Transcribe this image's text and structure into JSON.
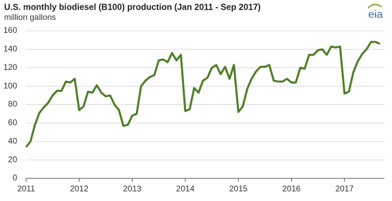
{
  "chart_data": {
    "type": "line",
    "title": "U.S. monthly biodiesel (B100) production (Jan 2011 - Sep 2017)",
    "subtitle": "million gallons",
    "logo": "eia",
    "categories": [
      "2011",
      null,
      null,
      null,
      null,
      null,
      null,
      null,
      null,
      null,
      null,
      null,
      "2012",
      null,
      null,
      null,
      null,
      null,
      null,
      null,
      null,
      null,
      null,
      null,
      "2013",
      null,
      null,
      null,
      null,
      null,
      null,
      null,
      null,
      null,
      null,
      null,
      "2014",
      null,
      null,
      null,
      null,
      null,
      null,
      null,
      null,
      null,
      null,
      null,
      "2015",
      null,
      null,
      null,
      null,
      null,
      null,
      null,
      null,
      null,
      null,
      null,
      "2016",
      null,
      null,
      null,
      null,
      null,
      null,
      null,
      null,
      null,
      null,
      null,
      "2017",
      null,
      null,
      null,
      null,
      null,
      null,
      null,
      null
    ],
    "series": [
      {
        "name": "biodiesel production",
        "color": "#4e7f26",
        "values": [
          34,
          40,
          58,
          71,
          77,
          82,
          90,
          95,
          95,
          105,
          104,
          108,
          74,
          78,
          94,
          93,
          101,
          93,
          89,
          90,
          80,
          74,
          57,
          58,
          68,
          70,
          100,
          106,
          110,
          112,
          128,
          129,
          126,
          136,
          128,
          134,
          73,
          75,
          98,
          93,
          106,
          109,
          120,
          123,
          113,
          121,
          108,
          123,
          72,
          78,
          97,
          108,
          116,
          121,
          121,
          123,
          106,
          105,
          105,
          108,
          104,
          104,
          120,
          119,
          134,
          134,
          139,
          140,
          134,
          143,
          142,
          143,
          92,
          94,
          115,
          127,
          135,
          140,
          148,
          148,
          146
        ]
      }
    ],
    "ylim": [
      0,
      160
    ],
    "yticks": [
      0,
      20,
      40,
      60,
      80,
      100,
      120,
      140,
      160
    ],
    "grid": true
  }
}
